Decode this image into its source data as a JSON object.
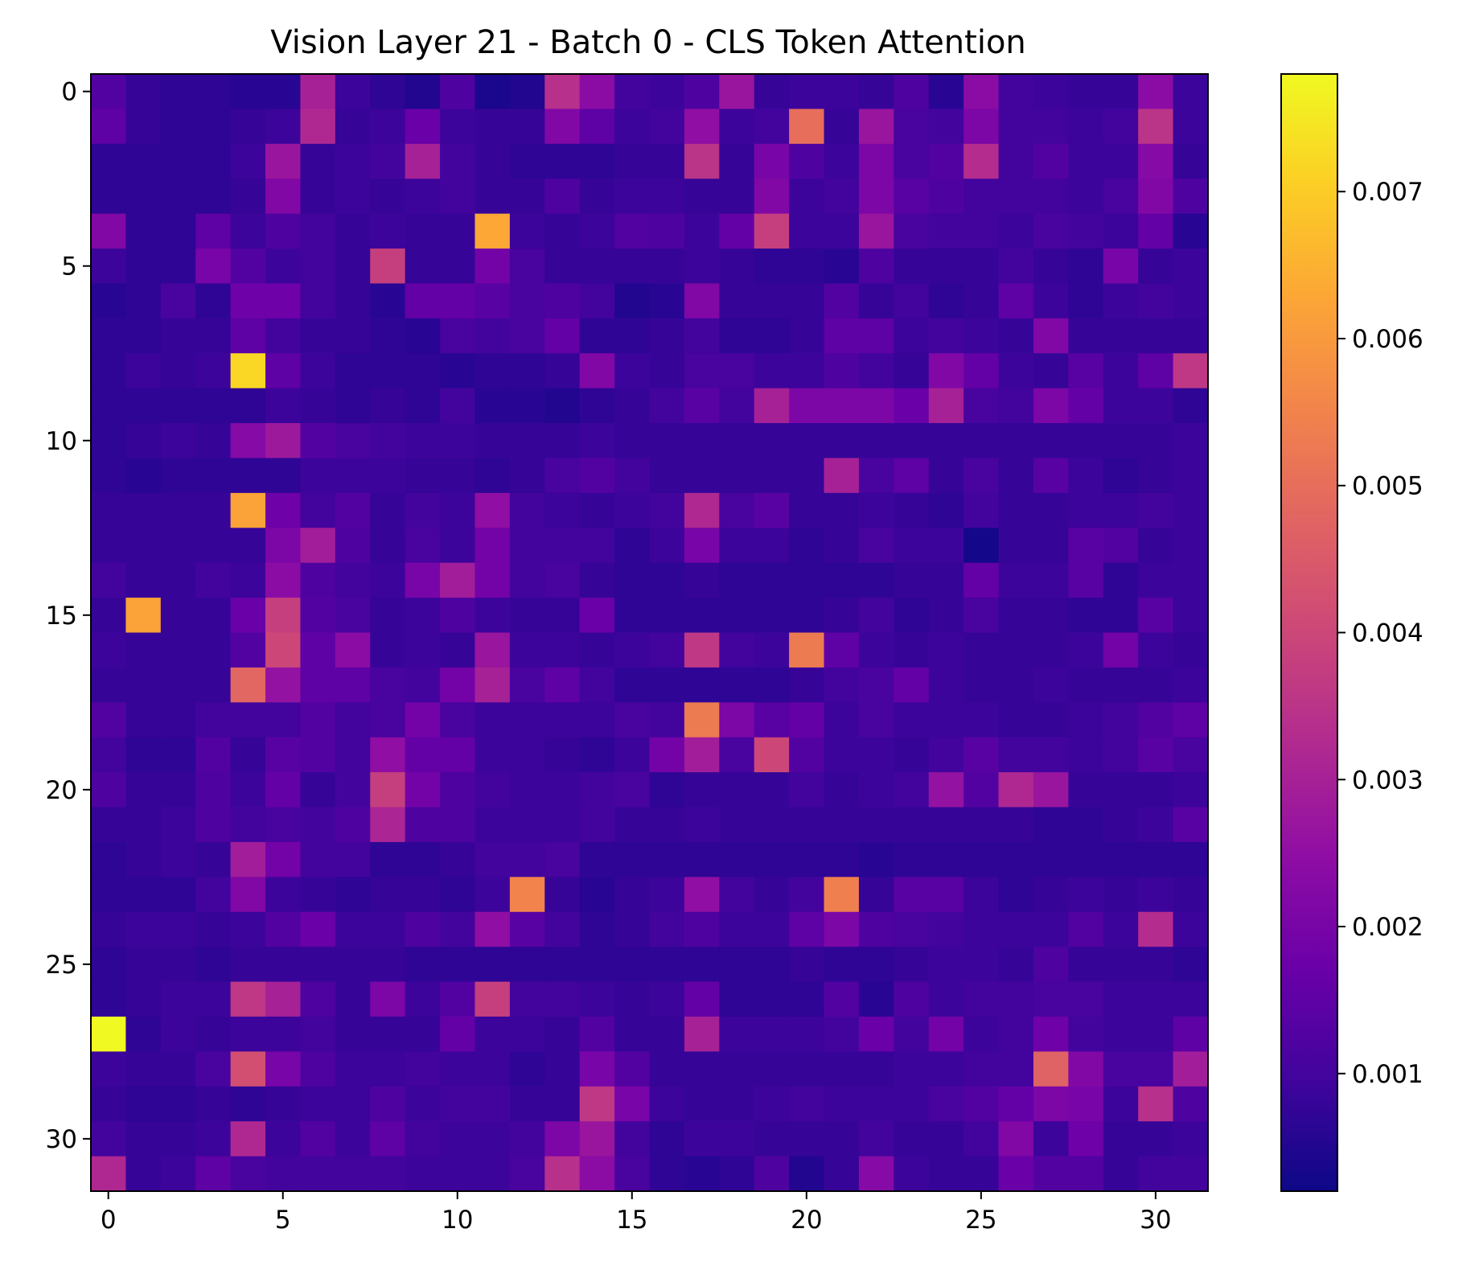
{
  "chart_data": {
    "type": "heatmap",
    "title": "Vision Layer 21 - Batch 0 - CLS Token Attention",
    "xlabel": "",
    "ylabel": "",
    "colormap": "plasma",
    "rows": 32,
    "cols": 32,
    "value_range": [
      0.0002,
      0.0078
    ],
    "x_ticks": [
      0,
      5,
      10,
      15,
      20,
      25,
      30
    ],
    "x_tick_labels": [
      "0",
      "5",
      "10",
      "15",
      "20",
      "25",
      "30"
    ],
    "y_ticks": [
      0,
      5,
      10,
      15,
      20,
      25,
      30
    ],
    "y_tick_labels": [
      "0",
      "5",
      "10",
      "15",
      "20",
      "25",
      "30"
    ],
    "colorbar": {
      "ticks": [
        0.001,
        0.002,
        0.003,
        0.004,
        0.005,
        0.006,
        0.007
      ],
      "tick_labels": [
        "0.001",
        "0.002",
        "0.003",
        "0.004",
        "0.005",
        "0.006",
        "0.007"
      ]
    },
    "grid": false,
    "matrix": [
      [
        0.0013,
        0.0008,
        0.0007,
        0.0007,
        0.0006,
        0.0006,
        0.003,
        0.0009,
        0.0007,
        0.0005,
        0.0012,
        0.0004,
        0.0005,
        0.0034,
        0.0024,
        0.001,
        0.0009,
        0.0012,
        0.0027,
        0.0008,
        0.0009,
        0.0009,
        0.0008,
        0.0012,
        0.0006,
        0.0024,
        0.001,
        0.0009,
        0.0008,
        0.0008,
        0.0024,
        0.0009
      ],
      [
        0.0015,
        0.0008,
        0.0007,
        0.0007,
        0.0008,
        0.0009,
        0.0032,
        0.0008,
        0.0009,
        0.0017,
        0.0009,
        0.0008,
        0.0008,
        0.0022,
        0.0015,
        0.0009,
        0.001,
        0.0025,
        0.0009,
        0.001,
        0.005,
        0.0008,
        0.0027,
        0.0011,
        0.001,
        0.0021,
        0.001,
        0.001,
        0.0009,
        0.001,
        0.0035,
        0.0009
      ],
      [
        0.0007,
        0.0007,
        0.0007,
        0.0007,
        0.0009,
        0.0027,
        0.0008,
        0.0009,
        0.001,
        0.003,
        0.001,
        0.0008,
        0.0007,
        0.0007,
        0.0007,
        0.0008,
        0.0008,
        0.0035,
        0.0008,
        0.002,
        0.0012,
        0.0009,
        0.0021,
        0.0011,
        0.0013,
        0.0033,
        0.001,
        0.0013,
        0.0009,
        0.0009,
        0.0023,
        0.0008
      ],
      [
        0.0007,
        0.0007,
        0.0007,
        0.0007,
        0.0008,
        0.0022,
        0.0008,
        0.0009,
        0.0008,
        0.0009,
        0.001,
        0.0008,
        0.0008,
        0.0012,
        0.0008,
        0.0009,
        0.0009,
        0.0008,
        0.0008,
        0.0022,
        0.0009,
        0.001,
        0.0021,
        0.0014,
        0.0012,
        0.001,
        0.001,
        0.001,
        0.0009,
        0.0011,
        0.0022,
        0.0012
      ],
      [
        0.0022,
        0.0007,
        0.0007,
        0.0015,
        0.0009,
        0.0012,
        0.001,
        0.0008,
        0.0009,
        0.0008,
        0.0008,
        0.0063,
        0.0009,
        0.0008,
        0.0009,
        0.0013,
        0.0012,
        0.0009,
        0.0016,
        0.0038,
        0.0009,
        0.0009,
        0.0027,
        0.0011,
        0.001,
        0.001,
        0.0009,
        0.0011,
        0.001,
        0.0009,
        0.0016,
        0.0006
      ],
      [
        0.0009,
        0.0007,
        0.0007,
        0.002,
        0.0013,
        0.0009,
        0.001,
        0.0008,
        0.0038,
        0.0008,
        0.0008,
        0.0019,
        0.0011,
        0.0008,
        0.0008,
        0.0008,
        0.0008,
        0.0009,
        0.0008,
        0.0007,
        0.0007,
        0.0006,
        0.0012,
        0.0008,
        0.0008,
        0.0008,
        0.001,
        0.0008,
        0.0007,
        0.002,
        0.0008,
        0.0009
      ],
      [
        0.0006,
        0.0007,
        0.0011,
        0.0007,
        0.0018,
        0.0018,
        0.001,
        0.0008,
        0.0006,
        0.0016,
        0.0016,
        0.0014,
        0.0011,
        0.0012,
        0.001,
        0.0005,
        0.0006,
        0.0022,
        0.0008,
        0.0008,
        0.0008,
        0.0013,
        0.0008,
        0.001,
        0.0007,
        0.0008,
        0.0015,
        0.0009,
        0.0007,
        0.0009,
        0.001,
        0.0009
      ],
      [
        0.0007,
        0.0007,
        0.0008,
        0.0008,
        0.0015,
        0.001,
        0.0008,
        0.0008,
        0.0007,
        0.0006,
        0.0011,
        0.001,
        0.0011,
        0.0016,
        0.0007,
        0.0007,
        0.0008,
        0.001,
        0.0007,
        0.0007,
        0.0008,
        0.0015,
        0.0015,
        0.0009,
        0.001,
        0.0009,
        0.0008,
        0.0022,
        0.0008,
        0.0008,
        0.0008,
        0.0008
      ],
      [
        0.0007,
        0.0009,
        0.0008,
        0.0009,
        0.0072,
        0.0015,
        0.0009,
        0.0007,
        0.0007,
        0.0007,
        0.0006,
        0.0007,
        0.0007,
        0.0008,
        0.0022,
        0.0009,
        0.0008,
        0.0011,
        0.0011,
        0.0009,
        0.0009,
        0.0012,
        0.001,
        0.0008,
        0.0022,
        0.0016,
        0.0009,
        0.0008,
        0.0014,
        0.0009,
        0.0015,
        0.0036
      ],
      [
        0.0007,
        0.0007,
        0.0007,
        0.0007,
        0.0007,
        0.0009,
        0.0008,
        0.0007,
        0.0008,
        0.0007,
        0.001,
        0.0006,
        0.0006,
        0.0005,
        0.0007,
        0.0008,
        0.001,
        0.0014,
        0.001,
        0.003,
        0.0021,
        0.0021,
        0.0021,
        0.0017,
        0.003,
        0.0011,
        0.001,
        0.0021,
        0.0016,
        0.0009,
        0.0009,
        0.0007
      ],
      [
        0.0007,
        0.0008,
        0.0009,
        0.0008,
        0.0023,
        0.0028,
        0.0013,
        0.0011,
        0.001,
        0.0009,
        0.0009,
        0.0008,
        0.0008,
        0.0008,
        0.0009,
        0.0008,
        0.0008,
        0.0008,
        0.0008,
        0.0008,
        0.0008,
        0.0008,
        0.0008,
        0.0008,
        0.0008,
        0.0008,
        0.0008,
        0.0008,
        0.0008,
        0.0008,
        0.0008,
        0.0009
      ],
      [
        0.0007,
        0.0006,
        0.0007,
        0.0007,
        0.0007,
        0.0007,
        0.0009,
        0.0009,
        0.0009,
        0.0008,
        0.0008,
        0.0007,
        0.0008,
        0.0011,
        0.0013,
        0.001,
        0.0008,
        0.0008,
        0.0008,
        0.0008,
        0.0008,
        0.003,
        0.0011,
        0.0015,
        0.0008,
        0.0011,
        0.0008,
        0.0014,
        0.0009,
        0.0007,
        0.0008,
        0.0009
      ],
      [
        0.0008,
        0.0008,
        0.0008,
        0.0008,
        0.0062,
        0.0018,
        0.001,
        0.0013,
        0.0008,
        0.001,
        0.0009,
        0.0025,
        0.001,
        0.0009,
        0.0008,
        0.0009,
        0.001,
        0.0032,
        0.0011,
        0.0014,
        0.0008,
        0.0008,
        0.0009,
        0.0008,
        0.0007,
        0.001,
        0.0008,
        0.0008,
        0.0009,
        0.0009,
        0.001,
        0.0009
      ],
      [
        0.0008,
        0.0008,
        0.0008,
        0.0008,
        0.0008,
        0.0021,
        0.0029,
        0.0012,
        0.0008,
        0.0011,
        0.0009,
        0.0019,
        0.001,
        0.001,
        0.001,
        0.0007,
        0.0009,
        0.002,
        0.0009,
        0.0009,
        0.0007,
        0.0008,
        0.0011,
        0.0009,
        0.0009,
        0.0003,
        0.0008,
        0.0008,
        0.0014,
        0.0013,
        0.0008,
        0.0009
      ],
      [
        0.001,
        0.0008,
        0.0008,
        0.001,
        0.0009,
        0.0024,
        0.0012,
        0.001,
        0.0009,
        0.002,
        0.0029,
        0.0019,
        0.001,
        0.0011,
        0.0008,
        0.0007,
        0.0007,
        0.0008,
        0.0007,
        0.0007,
        0.0007,
        0.0007,
        0.0007,
        0.0008,
        0.0008,
        0.0016,
        0.0009,
        0.0009,
        0.0014,
        0.0007,
        0.0009,
        0.0009
      ],
      [
        0.0008,
        0.0062,
        0.0008,
        0.0008,
        0.0017,
        0.0038,
        0.0013,
        0.0011,
        0.0008,
        0.0009,
        0.0012,
        0.0009,
        0.0008,
        0.0008,
        0.0017,
        0.0007,
        0.0007,
        0.0007,
        0.0007,
        0.0007,
        0.0007,
        0.0008,
        0.001,
        0.0007,
        0.0008,
        0.0011,
        0.0008,
        0.0008,
        0.0007,
        0.0007,
        0.0014,
        0.0009
      ],
      [
        0.0009,
        0.0008,
        0.0008,
        0.0008,
        0.0013,
        0.004,
        0.0015,
        0.0024,
        0.0008,
        0.0009,
        0.0008,
        0.0027,
        0.0009,
        0.0009,
        0.0008,
        0.0009,
        0.001,
        0.0036,
        0.001,
        0.0009,
        0.0053,
        0.0015,
        0.0009,
        0.0008,
        0.0009,
        0.0008,
        0.0008,
        0.0008,
        0.0009,
        0.0019,
        0.0009,
        0.0008
      ],
      [
        0.0008,
        0.0008,
        0.0008,
        0.0008,
        0.0048,
        0.0026,
        0.0015,
        0.0015,
        0.0011,
        0.001,
        0.0019,
        0.003,
        0.0011,
        0.0015,
        0.001,
        0.0007,
        0.0007,
        0.0007,
        0.0007,
        0.0007,
        0.0008,
        0.001,
        0.0011,
        0.0016,
        0.0009,
        0.0008,
        0.0008,
        0.0009,
        0.0008,
        0.0008,
        0.0008,
        0.0009
      ],
      [
        0.0013,
        0.0008,
        0.0008,
        0.001,
        0.001,
        0.001,
        0.0013,
        0.001,
        0.0011,
        0.0019,
        0.0011,
        0.0009,
        0.0009,
        0.0009,
        0.0009,
        0.0011,
        0.001,
        0.0053,
        0.0021,
        0.0014,
        0.0016,
        0.0009,
        0.0011,
        0.0009,
        0.0009,
        0.0009,
        0.0008,
        0.0008,
        0.0009,
        0.001,
        0.0013,
        0.0015
      ],
      [
        0.001,
        0.0007,
        0.0007,
        0.0013,
        0.0008,
        0.0014,
        0.0013,
        0.001,
        0.0025,
        0.0016,
        0.0016,
        0.0009,
        0.0009,
        0.0008,
        0.0007,
        0.0009,
        0.0019,
        0.0029,
        0.0011,
        0.004,
        0.0013,
        0.0009,
        0.0009,
        0.0008,
        0.001,
        0.0014,
        0.001,
        0.001,
        0.0009,
        0.001,
        0.0014,
        0.0011
      ],
      [
        0.0012,
        0.0008,
        0.0008,
        0.0012,
        0.0009,
        0.0016,
        0.0008,
        0.001,
        0.0038,
        0.0019,
        0.0012,
        0.001,
        0.0009,
        0.0009,
        0.001,
        0.0011,
        0.0007,
        0.0008,
        0.0008,
        0.0008,
        0.001,
        0.0008,
        0.0009,
        0.001,
        0.0026,
        0.0013,
        0.0032,
        0.0027,
        0.0008,
        0.0008,
        0.0008,
        0.0009
      ],
      [
        0.0008,
        0.0008,
        0.0009,
        0.0012,
        0.001,
        0.0011,
        0.001,
        0.0012,
        0.0031,
        0.0012,
        0.0012,
        0.0009,
        0.0009,
        0.0009,
        0.001,
        0.0008,
        0.0008,
        0.0009,
        0.0008,
        0.0008,
        0.0008,
        0.0008,
        0.0008,
        0.0008,
        0.0008,
        0.0008,
        0.0008,
        0.0007,
        0.0007,
        0.0008,
        0.0009,
        0.0014
      ],
      [
        0.0007,
        0.0008,
        0.0009,
        0.0008,
        0.0029,
        0.0019,
        0.001,
        0.001,
        0.0007,
        0.0007,
        0.0008,
        0.001,
        0.001,
        0.0011,
        0.0007,
        0.0007,
        0.0007,
        0.0007,
        0.0007,
        0.0007,
        0.0007,
        0.0007,
        0.0006,
        0.0007,
        0.0007,
        0.0007,
        0.0007,
        0.0007,
        0.0007,
        0.0007,
        0.0007,
        0.0007
      ],
      [
        0.0007,
        0.0007,
        0.0007,
        0.001,
        0.0022,
        0.0009,
        0.0008,
        0.0007,
        0.0008,
        0.0008,
        0.0007,
        0.0009,
        0.0055,
        0.0008,
        0.0006,
        0.0008,
        0.0009,
        0.0025,
        0.001,
        0.0008,
        0.001,
        0.0054,
        0.0008,
        0.0014,
        0.0014,
        0.0009,
        0.0007,
        0.0008,
        0.0009,
        0.0008,
        0.0009,
        0.0008
      ],
      [
        0.0008,
        0.0009,
        0.0009,
        0.0008,
        0.0009,
        0.0013,
        0.0017,
        0.0009,
        0.0009,
        0.0012,
        0.001,
        0.0025,
        0.0014,
        0.001,
        0.0007,
        0.0008,
        0.001,
        0.0012,
        0.0009,
        0.0009,
        0.0015,
        0.0021,
        0.0012,
        0.0011,
        0.001,
        0.0009,
        0.0009,
        0.0009,
        0.0013,
        0.0009,
        0.0033,
        0.0009
      ],
      [
        0.0007,
        0.0008,
        0.0008,
        0.0007,
        0.0008,
        0.0008,
        0.0008,
        0.0008,
        0.0008,
        0.0007,
        0.0007,
        0.0007,
        0.0007,
        0.0007,
        0.0007,
        0.0007,
        0.0007,
        0.0007,
        0.0007,
        0.0007,
        0.0008,
        0.0007,
        0.0007,
        0.0008,
        0.0009,
        0.0009,
        0.0008,
        0.0012,
        0.0008,
        0.0008,
        0.0008,
        0.0007
      ],
      [
        0.0007,
        0.0008,
        0.0009,
        0.0009,
        0.0036,
        0.003,
        0.0012,
        0.0008,
        0.0021,
        0.0009,
        0.0013,
        0.0038,
        0.001,
        0.001,
        0.0009,
        0.0008,
        0.0009,
        0.0016,
        0.0007,
        0.0007,
        0.0007,
        0.0013,
        0.0006,
        0.0012,
        0.0009,
        0.001,
        0.001,
        0.0011,
        0.0011,
        0.0009,
        0.0009,
        0.0009
      ],
      [
        0.0078,
        0.0007,
        0.0009,
        0.0008,
        0.0009,
        0.0009,
        0.001,
        0.0008,
        0.0008,
        0.0008,
        0.0016,
        0.0009,
        0.0009,
        0.0008,
        0.0013,
        0.0008,
        0.0008,
        0.003,
        0.0009,
        0.0009,
        0.0009,
        0.001,
        0.0017,
        0.001,
        0.0019,
        0.0009,
        0.001,
        0.0018,
        0.001,
        0.0009,
        0.0009,
        0.0015
      ],
      [
        0.0009,
        0.0008,
        0.0008,
        0.0011,
        0.0042,
        0.002,
        0.0012,
        0.0009,
        0.0009,
        0.001,
        0.0009,
        0.0009,
        0.0007,
        0.0008,
        0.002,
        0.0013,
        0.0008,
        0.0008,
        0.0008,
        0.0008,
        0.0008,
        0.0008,
        0.0008,
        0.0009,
        0.0009,
        0.001,
        0.001,
        0.0047,
        0.0022,
        0.0011,
        0.0011,
        0.0029
      ],
      [
        0.0008,
        0.0007,
        0.0007,
        0.0008,
        0.0007,
        0.0008,
        0.0009,
        0.0009,
        0.0012,
        0.0009,
        0.001,
        0.001,
        0.0008,
        0.0008,
        0.0036,
        0.002,
        0.0009,
        0.0008,
        0.0008,
        0.0009,
        0.001,
        0.0009,
        0.0009,
        0.0009,
        0.0011,
        0.0013,
        0.0016,
        0.0021,
        0.002,
        0.0009,
        0.0034,
        0.0012
      ],
      [
        0.001,
        0.0008,
        0.0008,
        0.0009,
        0.0032,
        0.0009,
        0.0013,
        0.0009,
        0.0015,
        0.001,
        0.0009,
        0.0009,
        0.001,
        0.0021,
        0.0027,
        0.001,
        0.0007,
        0.0009,
        0.0009,
        0.0008,
        0.0008,
        0.0008,
        0.001,
        0.0008,
        0.0008,
        0.001,
        0.0022,
        0.0009,
        0.0018,
        0.0008,
        0.0008,
        0.0009
      ],
      [
        0.0032,
        0.0008,
        0.0009,
        0.0015,
        0.0011,
        0.001,
        0.001,
        0.001,
        0.001,
        0.0009,
        0.0009,
        0.0009,
        0.0011,
        0.0034,
        0.0024,
        0.0011,
        0.0007,
        0.0006,
        0.0007,
        0.0012,
        0.0005,
        0.0008,
        0.0023,
        0.0009,
        0.0008,
        0.0008,
        0.0017,
        0.0013,
        0.0013,
        0.0008,
        0.001,
        0.001
      ]
    ]
  }
}
